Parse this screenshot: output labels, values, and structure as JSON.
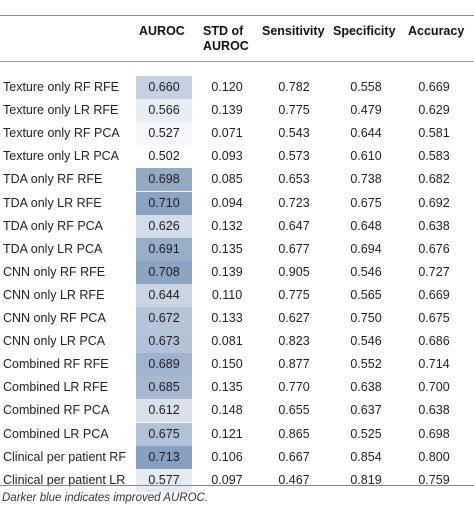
{
  "table": {
    "headers": {
      "auroc": "AUROC",
      "std": [
        "STD of",
        "AUROC"
      ],
      "sensitivity": "Sensitivity",
      "specificity": "Specificity",
      "accuracy": "Accuracy"
    },
    "rows": [
      {
        "label": "Texture only RF RFE",
        "auroc": "0.660",
        "std": "0.120",
        "sensitivity": "0.782",
        "specificity": "0.558",
        "accuracy": "0.669",
        "auroc_color": "#c3d1e2"
      },
      {
        "label": "Texture only LR RFE",
        "auroc": "0.566",
        "std": "0.139",
        "sensitivity": "0.775",
        "specificity": "0.479",
        "accuracy": "0.629",
        "auroc_color": "#e9eef5"
      },
      {
        "label": "Texture only RF PCA",
        "auroc": "0.527",
        "std": "0.071",
        "sensitivity": "0.543",
        "specificity": "0.644",
        "accuracy": "0.581",
        "auroc_color": "#f4f7fa"
      },
      {
        "label": "Texture only LR PCA",
        "auroc": "0.502",
        "std": "0.093",
        "sensitivity": "0.573",
        "specificity": "0.610",
        "accuracy": "0.583",
        "auroc_color": "#ffffff"
      },
      {
        "label": "TDA only RF RFE",
        "auroc": "0.698",
        "std": "0.085",
        "sensitivity": "0.653",
        "specificity": "0.738",
        "accuracy": "0.682",
        "auroc_color": "#93aac6"
      },
      {
        "label": "TDA only LR RFE",
        "auroc": "0.710",
        "std": "0.094",
        "sensitivity": "0.723",
        "specificity": "0.675",
        "accuracy": "0.692",
        "auroc_color": "#8aa3c1"
      },
      {
        "label": "TDA only RF PCA",
        "auroc": "0.626",
        "std": "0.132",
        "sensitivity": "0.647",
        "specificity": "0.648",
        "accuracy": "0.638",
        "auroc_color": "#d3dde9"
      },
      {
        "label": "TDA only LR PCA",
        "auroc": "0.691",
        "std": "0.135",
        "sensitivity": "0.677",
        "specificity": "0.694",
        "accuracy": "0.676",
        "auroc_color": "#98adc8"
      },
      {
        "label": "CNN only RF RFE",
        "auroc": "0.708",
        "std": "0.139",
        "sensitivity": "0.905",
        "specificity": "0.546",
        "accuracy": "0.727",
        "auroc_color": "#8ba4c1"
      },
      {
        "label": "CNN only LR RFE",
        "auroc": "0.644",
        "std": "0.110",
        "sensitivity": "0.775",
        "specificity": "0.565",
        "accuracy": "0.669",
        "auroc_color": "#c9d5e4"
      },
      {
        "label": "CNN only RF PCA",
        "auroc": "0.672",
        "std": "0.133",
        "sensitivity": "0.627",
        "specificity": "0.750",
        "accuracy": "0.675",
        "auroc_color": "#b4c5d9"
      },
      {
        "label": "CNN only LR PCA",
        "auroc": "0.673",
        "std": "0.081",
        "sensitivity": "0.823",
        "specificity": "0.546",
        "accuracy": "0.686",
        "auroc_color": "#b2c3d8"
      },
      {
        "label": "Combined RF RFE",
        "auroc": "0.689",
        "std": "0.150",
        "sensitivity": "0.877",
        "specificity": "0.552",
        "accuracy": "0.714",
        "auroc_color": "#9fb3cd"
      },
      {
        "label": "Combined LR RFE",
        "auroc": "0.685",
        "std": "0.135",
        "sensitivity": "0.770",
        "specificity": "0.638",
        "accuracy": "0.700",
        "auroc_color": "#a7b9d0"
      },
      {
        "label": "Combined RF PCA",
        "auroc": "0.612",
        "std": "0.148",
        "sensitivity": "0.655",
        "specificity": "0.637",
        "accuracy": "0.638",
        "auroc_color": "#d9e2ec"
      },
      {
        "label": "Combined LR PCA",
        "auroc": "0.675",
        "std": "0.121",
        "sensitivity": "0.865",
        "specificity": "0.525",
        "accuracy": "0.698",
        "auroc_color": "#b0c2d7"
      },
      {
        "label": "Clinical per patient RF",
        "auroc": "0.713",
        "std": "0.106",
        "sensitivity": "0.667",
        "specificity": "0.854",
        "accuracy": "0.800",
        "auroc_color": "#87a0bf"
      },
      {
        "label": "Clinical per patient LR",
        "auroc": "0.577",
        "std": "0.097",
        "sensitivity": "0.467",
        "specificity": "0.819",
        "accuracy": "0.759",
        "auroc_color": "#e6ecf3"
      }
    ]
  },
  "footnote": "Darker blue indicates improved AUROC."
}
